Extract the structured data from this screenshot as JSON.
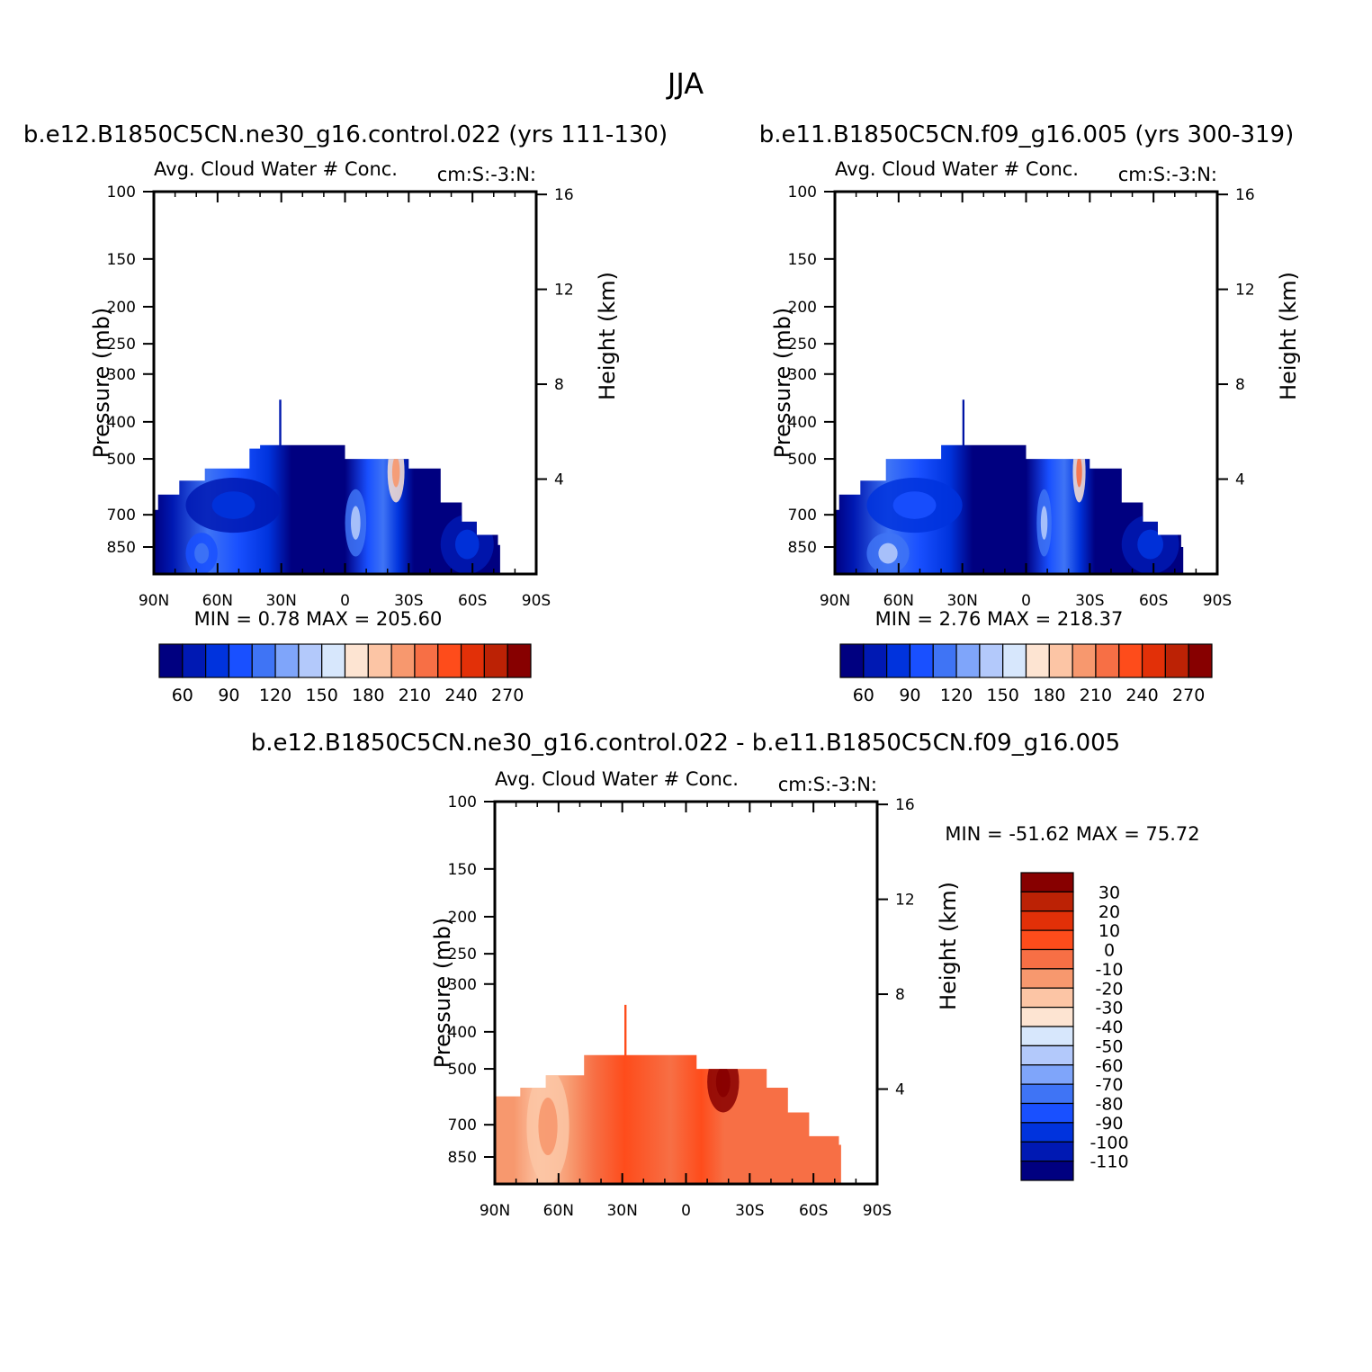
{
  "page_title": "JJA",
  "panels": [
    {
      "title": "b.e12.B1850C5CN.ne30_g16.control.022 (yrs 111-130)",
      "subtitle": "Avg. Cloud Water # Conc.",
      "units": "cm:S:-3:N:",
      "stats": "MIN =     0.78   MAX =  205.60",
      "colorbar": {
        "orientation": "horizontal",
        "colors": [
          "#000080",
          "#0019b3",
          "#0033dd",
          "#1950ff",
          "#3f74f5",
          "#7fa5fa",
          "#b3c9fb",
          "#d7e7fc",
          "#fde4d2",
          "#fcc5a5",
          "#f7986e",
          "#f76f45",
          "#fe4c1b",
          "#e23008",
          "#bc2205",
          "#870000"
        ],
        "labels": [
          "60",
          "90",
          "120",
          "150",
          "180",
          "210",
          "240",
          "270"
        ]
      }
    },
    {
      "title": "b.e11.B1850C5CN.f09_g16.005 (yrs 300-319)",
      "subtitle": "Avg. Cloud Water # Conc.",
      "units": "cm:S:-3:N:",
      "stats": "MIN =     2.76   MAX =  218.37",
      "colorbar": {
        "orientation": "horizontal",
        "colors": [
          "#000080",
          "#0019b3",
          "#0033dd",
          "#1950ff",
          "#3f74f5",
          "#7fa5fa",
          "#b3c9fb",
          "#d7e7fc",
          "#fde4d2",
          "#fcc5a5",
          "#f7986e",
          "#f76f45",
          "#fe4c1b",
          "#e23008",
          "#bc2205",
          "#870000"
        ],
        "labels": [
          "60",
          "90",
          "120",
          "150",
          "180",
          "210",
          "240",
          "270"
        ]
      }
    },
    {
      "title": "b.e12.B1850C5CN.ne30_g16.control.022 - b.e11.B1850C5CN.f09_g16.005",
      "subtitle": "Avg. Cloud Water # Conc.",
      "units": "cm:S:-3:N:",
      "stats": "MIN = -51.62   MAX =   75.72",
      "colorbar": {
        "orientation": "vertical",
        "colors": [
          "#870000",
          "#bc2205",
          "#e23008",
          "#fe4c1b",
          "#f76f45",
          "#f7986e",
          "#fcc5a5",
          "#fde4d2",
          "#d7e7fc",
          "#b3c9fb",
          "#7fa5fa",
          "#3f74f5",
          "#1950ff",
          "#0033dd",
          "#0019b3",
          "#000080"
        ],
        "labels": [
          "30",
          "20",
          "10",
          "0",
          "-10",
          "-20",
          "-30",
          "-40",
          "-50",
          "-60",
          "-70",
          "-80",
          "-90",
          "-100",
          "-110"
        ]
      }
    }
  ],
  "chart_data": [
    {
      "type": "heatmap",
      "title": "b.e12.B1850C5CN.ne30_g16.control.022 (yrs 111-130)",
      "variable": "Avg. Cloud Water # Conc.",
      "units": "cm:S:-3:N:",
      "x_ticks": [
        "90N",
        "60N",
        "30N",
        "0",
        "30S",
        "60S",
        "90S"
      ],
      "x_range": [
        90,
        -90
      ],
      "y_ticks": [
        "100",
        "150",
        "200",
        "250",
        "300",
        "400",
        "500",
        "700",
        "850"
      ],
      "y_range_mb": [
        100,
        1000
      ],
      "y2_ticks": [
        "16",
        "12",
        "8",
        "4"
      ],
      "ylabel": "Pressure (mb)",
      "y2label": "Height (km)",
      "min": 0.78,
      "max": 205.6,
      "contour_levels": [
        60,
        70,
        80,
        90,
        100,
        110,
        120,
        130,
        140,
        150,
        160,
        170,
        180,
        190,
        200,
        210,
        220,
        230,
        240,
        250,
        260,
        270
      ],
      "domain_top_mb": [
        {
          "lat": 90,
          "top_mb": 680
        },
        {
          "lat": 88,
          "top_mb": 620
        },
        {
          "lat": 78,
          "top_mb": 570
        },
        {
          "lat": 66,
          "top_mb": 530
        },
        {
          "lat": 55,
          "top_mb": 530
        },
        {
          "lat": 45,
          "top_mb": 470
        },
        {
          "lat": 40,
          "top_mb": 460
        },
        {
          "lat": 31,
          "top_mb": 350
        },
        {
          "lat": 30,
          "top_mb": 460
        },
        {
          "lat": 8,
          "top_mb": 460
        },
        {
          "lat": 0,
          "top_mb": 500
        },
        {
          "lat": -12,
          "top_mb": 500
        },
        {
          "lat": -30,
          "top_mb": 530
        },
        {
          "lat": -45,
          "top_mb": 650
        },
        {
          "lat": -55,
          "top_mb": 730
        },
        {
          "lat": -62,
          "top_mb": 790
        },
        {
          "lat": -72,
          "top_mb": 840
        },
        {
          "lat": -73,
          "top_mb": 1000
        }
      ],
      "features": [
        {
          "region": "60N-75N near surface",
          "value_range": [
            80,
            120
          ]
        },
        {
          "region": "30N-75N mid-levels",
          "value_range": [
            60,
            90
          ]
        },
        {
          "region": "0-10S 600-900mb",
          "value_range": [
            90,
            140
          ]
        },
        {
          "region": "20S-28S 450-650mb",
          "value_range": [
            150,
            205
          ]
        },
        {
          "region": "45S-70S below 700mb",
          "value_range": [
            60,
            80
          ]
        }
      ]
    },
    {
      "type": "heatmap",
      "title": "b.e11.B1850C5CN.f09_g16.005 (yrs 300-319)",
      "variable": "Avg. Cloud Water # Conc.",
      "units": "cm:S:-3:N:",
      "x_ticks": [
        "90N",
        "60N",
        "30N",
        "0",
        "30S",
        "60S",
        "90S"
      ],
      "x_range": [
        90,
        -90
      ],
      "y_ticks": [
        "100",
        "150",
        "200",
        "250",
        "300",
        "400",
        "500",
        "700",
        "850"
      ],
      "y_range_mb": [
        100,
        1000
      ],
      "y2_ticks": [
        "16",
        "12",
        "8",
        "4"
      ],
      "ylabel": "Pressure (mb)",
      "y2label": "Height (km)",
      "min": 2.76,
      "max": 218.37,
      "contour_levels": [
        60,
        70,
        80,
        90,
        100,
        110,
        120,
        130,
        140,
        150,
        160,
        170,
        180,
        190,
        200,
        210,
        220,
        230,
        240,
        250,
        260,
        270
      ],
      "domain_top_mb": [
        {
          "lat": 90,
          "top_mb": 680
        },
        {
          "lat": 88,
          "top_mb": 620
        },
        {
          "lat": 78,
          "top_mb": 570
        },
        {
          "lat": 66,
          "top_mb": 500
        },
        {
          "lat": 45,
          "top_mb": 500
        },
        {
          "lat": 40,
          "top_mb": 460
        },
        {
          "lat": 30,
          "top_mb": 350
        },
        {
          "lat": 29,
          "top_mb": 460
        },
        {
          "lat": 8,
          "top_mb": 460
        },
        {
          "lat": 0,
          "top_mb": 500
        },
        {
          "lat": -12,
          "top_mb": 500
        },
        {
          "lat": -30,
          "top_mb": 530
        },
        {
          "lat": -45,
          "top_mb": 650
        },
        {
          "lat": -55,
          "top_mb": 730
        },
        {
          "lat": -62,
          "top_mb": 790
        },
        {
          "lat": -73,
          "top_mb": 850
        },
        {
          "lat": -74,
          "top_mb": 1000
        }
      ],
      "features": [
        {
          "region": "55N-75N near surface",
          "value_range": [
            80,
            140
          ]
        },
        {
          "region": "30N-75N mid-levels",
          "value_range": [
            60,
            100
          ]
        },
        {
          "region": "5S-12S 600-900mb",
          "value_range": [
            90,
            150
          ]
        },
        {
          "region": "22S-28S 450-650mb",
          "value_range": [
            150,
            218
          ]
        },
        {
          "region": "45S-72S below 700mb",
          "value_range": [
            60,
            80
          ]
        }
      ]
    },
    {
      "type": "heatmap",
      "title": "b.e12.B1850C5CN.ne30_g16.control.022 - b.e11.B1850C5CN.f09_g16.005",
      "variable": "Avg. Cloud Water # Conc.",
      "units": "cm:S:-3:N:",
      "x_ticks": [
        "90N",
        "60N",
        "30N",
        "0",
        "30S",
        "60S",
        "90S"
      ],
      "x_range": [
        90,
        -90
      ],
      "y_ticks": [
        "100",
        "150",
        "200",
        "250",
        "300",
        "400",
        "500",
        "700",
        "850"
      ],
      "y_range_mb": [
        100,
        1000
      ],
      "y2_ticks": [
        "16",
        "12",
        "8",
        "4"
      ],
      "ylabel": "Pressure (mb)",
      "y2label": "Height (km)",
      "min": -51.62,
      "max": 75.72,
      "contour_levels": [
        -110,
        -100,
        -90,
        -80,
        -70,
        -60,
        -50,
        -40,
        -30,
        -20,
        -10,
        0,
        10,
        20,
        30
      ],
      "domain_top_mb": [
        {
          "lat": 90,
          "top_mb": 590
        },
        {
          "lat": 78,
          "top_mb": 560
        },
        {
          "lat": 66,
          "top_mb": 520
        },
        {
          "lat": 48,
          "top_mb": 460
        },
        {
          "lat": 30,
          "top_mb": 460
        },
        {
          "lat": 29,
          "top_mb": 340
        },
        {
          "lat": 28,
          "top_mb": 460
        },
        {
          "lat": 0,
          "top_mb": 460
        },
        {
          "lat": -5,
          "top_mb": 500
        },
        {
          "lat": -30,
          "top_mb": 500
        },
        {
          "lat": -38,
          "top_mb": 560
        },
        {
          "lat": -48,
          "top_mb": 650
        },
        {
          "lat": -58,
          "top_mb": 750
        },
        {
          "lat": -72,
          "top_mb": 790
        },
        {
          "lat": -73,
          "top_mb": 1000
        }
      ],
      "features": [
        {
          "region": "most of domain",
          "value_range": [
            -10,
            10
          ]
        },
        {
          "region": "55N-75N",
          "value_range": [
            -30,
            -10
          ]
        },
        {
          "region": "10S-25S 450-650mb",
          "value_range": [
            10,
            75
          ]
        }
      ]
    }
  ]
}
